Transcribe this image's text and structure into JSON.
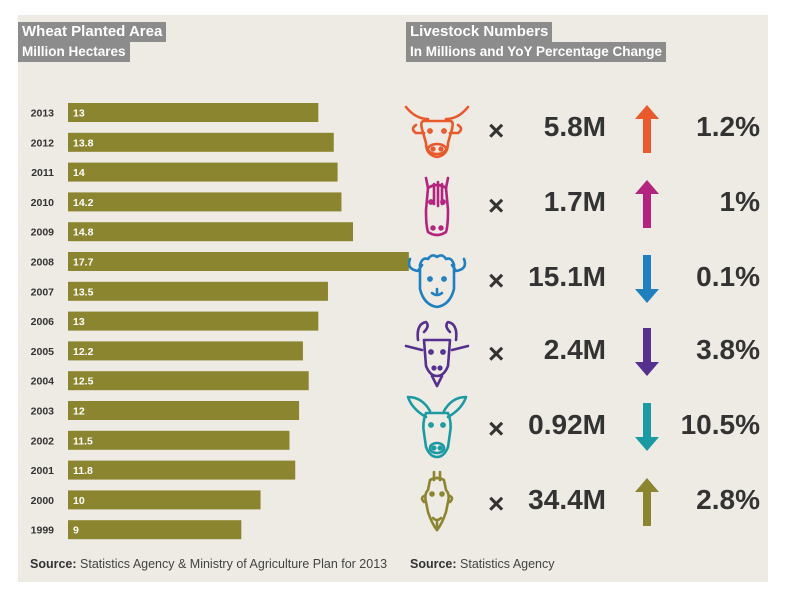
{
  "wheat": {
    "title_line1": "Wheat Planted Area",
    "title_line2": "Million Hectares",
    "source_label": "Source:",
    "source_text": " Statistics Agency & Ministry of Agriculture Plan for 2013"
  },
  "livestock": {
    "title_line1": "Livestock Numbers",
    "title_line2": "In Millions and YoY Percentage Change",
    "source_label": "Source:",
    "source_text": " Statistics Agency",
    "multiply_symbol": "×",
    "items": [
      {
        "icon": "cow-icon",
        "value": "5.8M",
        "direction": "up",
        "change": "1.2%",
        "color": "#e8592b"
      },
      {
        "icon": "horse-icon",
        "value": "1.7M",
        "direction": "up",
        "change": "1%",
        "color": "#b4237e"
      },
      {
        "icon": "sheep-icon",
        "value": "15.1M",
        "direction": "down",
        "change": "0.1%",
        "color": "#1f7fbf"
      },
      {
        "icon": "goat-icon",
        "value": "2.4M",
        "direction": "down",
        "change": "3.8%",
        "color": "#55308d"
      },
      {
        "icon": "donkey-icon",
        "value": "0.92M",
        "direction": "down",
        "change": "10.5%",
        "color": "#1a9aa3"
      },
      {
        "icon": "camel-icon",
        "value": "34.4M",
        "direction": "up",
        "change": "2.8%",
        "color": "#8c8530"
      }
    ]
  },
  "chart_data": {
    "type": "bar",
    "orientation": "horizontal",
    "title": "Wheat Planted Area",
    "subtitle": "Million Hectares",
    "categories": [
      "2013",
      "2012",
      "2011",
      "2010",
      "2009",
      "2008",
      "2007",
      "2006",
      "2005",
      "2004",
      "2003",
      "2002",
      "2001",
      "2000",
      "1999"
    ],
    "values": [
      13,
      13.8,
      14,
      14.2,
      14.8,
      17.7,
      13.5,
      13,
      12.2,
      12.5,
      12,
      11.5,
      11.8,
      10,
      9
    ],
    "labels": [
      "13",
      "13.8",
      "14",
      "14.2",
      "14.8",
      "17.7",
      "13.5",
      "13",
      "12.2",
      "12.5",
      "12",
      "11.5",
      "11.8",
      "10",
      "9"
    ],
    "bar_color": "#8c8530",
    "label_color": "#ffffff",
    "grid": false,
    "legend": "none"
  }
}
